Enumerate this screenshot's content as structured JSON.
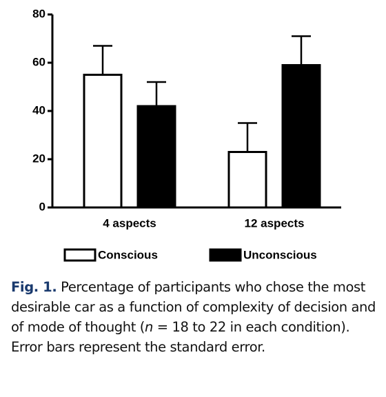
{
  "chart_data": {
    "type": "bar",
    "categories": [
      "4 aspects",
      "12 aspects"
    ],
    "series": [
      {
        "name": "Conscious",
        "color": "#ffffff",
        "values": [
          55,
          23
        ],
        "errors": [
          12,
          12
        ]
      },
      {
        "name": "Unconscious",
        "color": "#000000",
        "values": [
          42,
          59
        ],
        "errors": [
          10,
          12
        ]
      }
    ],
    "ylim": [
      0,
      80
    ],
    "yticks": [
      0,
      20,
      40,
      60,
      80
    ],
    "grid": false
  },
  "caption": {
    "label": "Fig. 1.",
    "text_before": "Percentage of participants who chose the most desirable car as a function of complexity of decision and of mode of thought (",
    "italic": "n",
    "text_after": " = 18 to 22 in each condition). Error bars represent the standard error."
  }
}
